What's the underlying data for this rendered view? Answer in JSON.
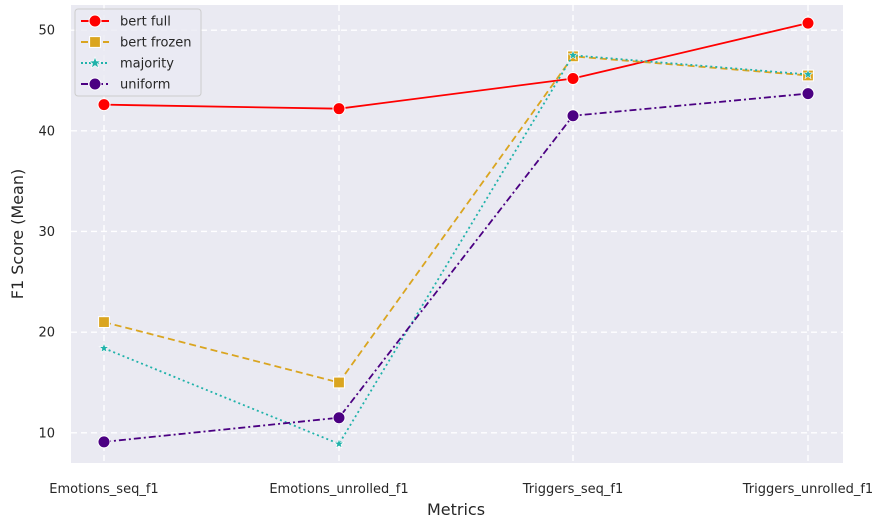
{
  "chart_data": {
    "type": "line",
    "xlabel": "Metrics",
    "ylabel": "F1 Score (Mean)",
    "categories": [
      "Emotions_seq_f1",
      "Emotions_unrolled_f1",
      "Triggers_seq_f1",
      "Triggers_unrolled_f1"
    ],
    "ylim": [
      7,
      52.5
    ],
    "yticks": [
      10,
      20,
      30,
      40,
      50
    ],
    "grid": true,
    "legend_position": "top-left",
    "series": [
      {
        "name": "bert full",
        "values": [
          42.6,
          42.2,
          45.2,
          50.7
        ],
        "color": "#ff0000",
        "dash": "solid",
        "marker": "circle"
      },
      {
        "name": "bert frozen",
        "values": [
          21.0,
          15.0,
          47.4,
          45.5
        ],
        "color": "#daa520",
        "dash": "dashed",
        "marker": "square"
      },
      {
        "name": "majority",
        "values": [
          18.4,
          8.9,
          47.5,
          45.6
        ],
        "color": "#20b2aa",
        "dash": "dotted",
        "marker": "star"
      },
      {
        "name": "uniform",
        "values": [
          9.1,
          11.5,
          41.5,
          43.7
        ],
        "color": "#4b0082",
        "dash": "dashdot",
        "marker": "circle"
      }
    ]
  }
}
